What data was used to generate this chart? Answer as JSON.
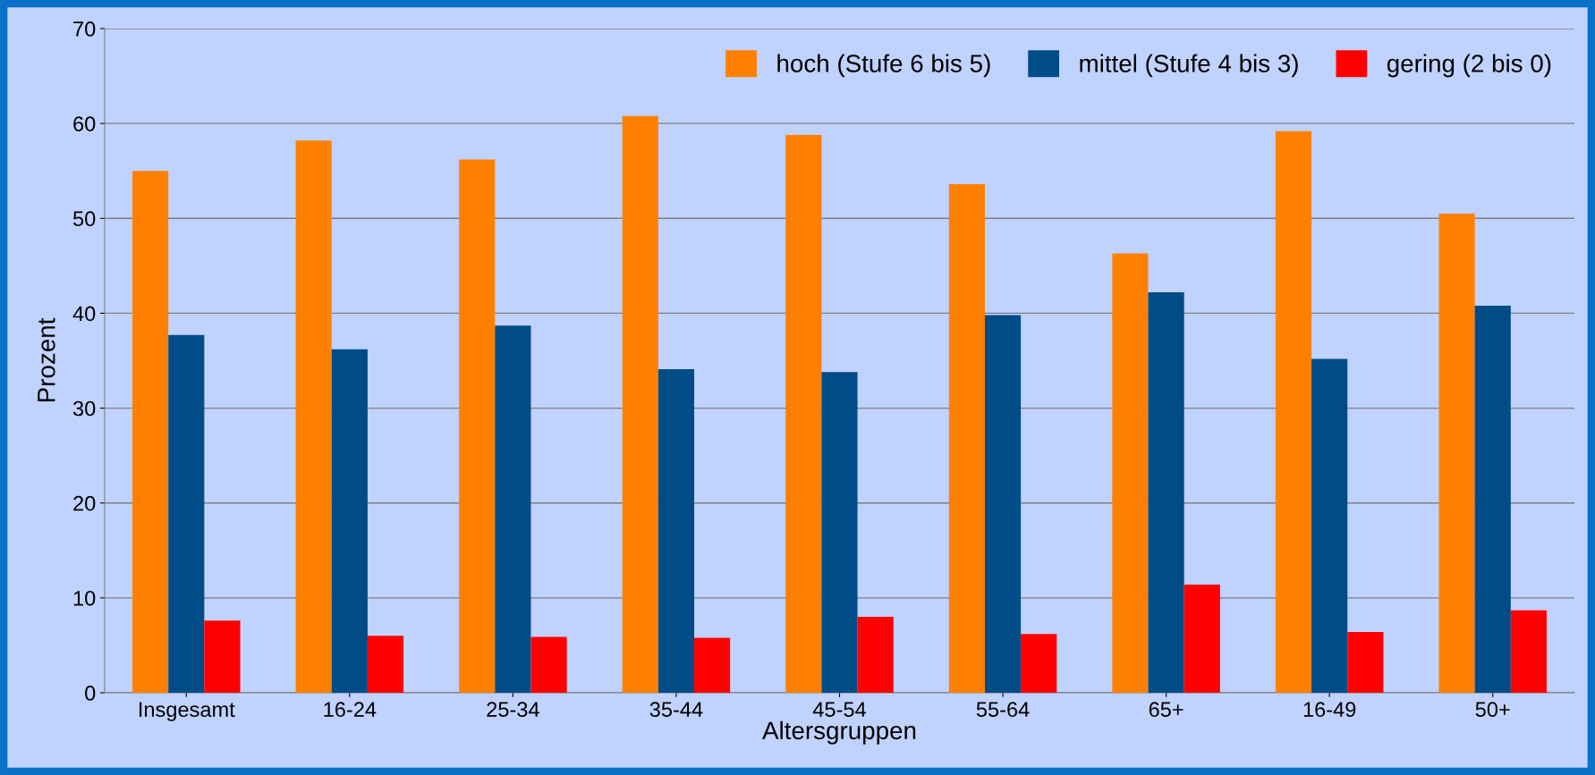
{
  "chart_data": {
    "type": "bar",
    "xlabel": "Altersgruppen",
    "ylabel": "Prozent",
    "categories": [
      "Insgesamt",
      "16-24",
      "25-34",
      "35-44",
      "45-54",
      "55-64",
      "65+",
      "16-49",
      "50+"
    ],
    "series": [
      {
        "name": "hoch (Stufe 6 bis 5)",
        "color": "#ff8000",
        "values": [
          55.0,
          58.2,
          56.2,
          60.8,
          58.8,
          53.6,
          46.3,
          59.2,
          50.5
        ]
      },
      {
        "name": "mittel (Stufe 4 bis 3)",
        "color": "#004c86",
        "values": [
          37.7,
          36.2,
          38.7,
          34.1,
          33.8,
          39.8,
          42.2,
          35.2,
          40.8
        ]
      },
      {
        "name": "gering (2 bis 0)",
        "color": "#ff0000",
        "values": [
          7.6,
          6.0,
          5.9,
          5.8,
          8.0,
          6.2,
          11.4,
          6.4,
          8.7
        ]
      }
    ],
    "ylim": [
      0,
      70
    ],
    "yticks": [
      0,
      10,
      20,
      30,
      40,
      50,
      60,
      70
    ],
    "grid": "y",
    "legend": "top right"
  }
}
